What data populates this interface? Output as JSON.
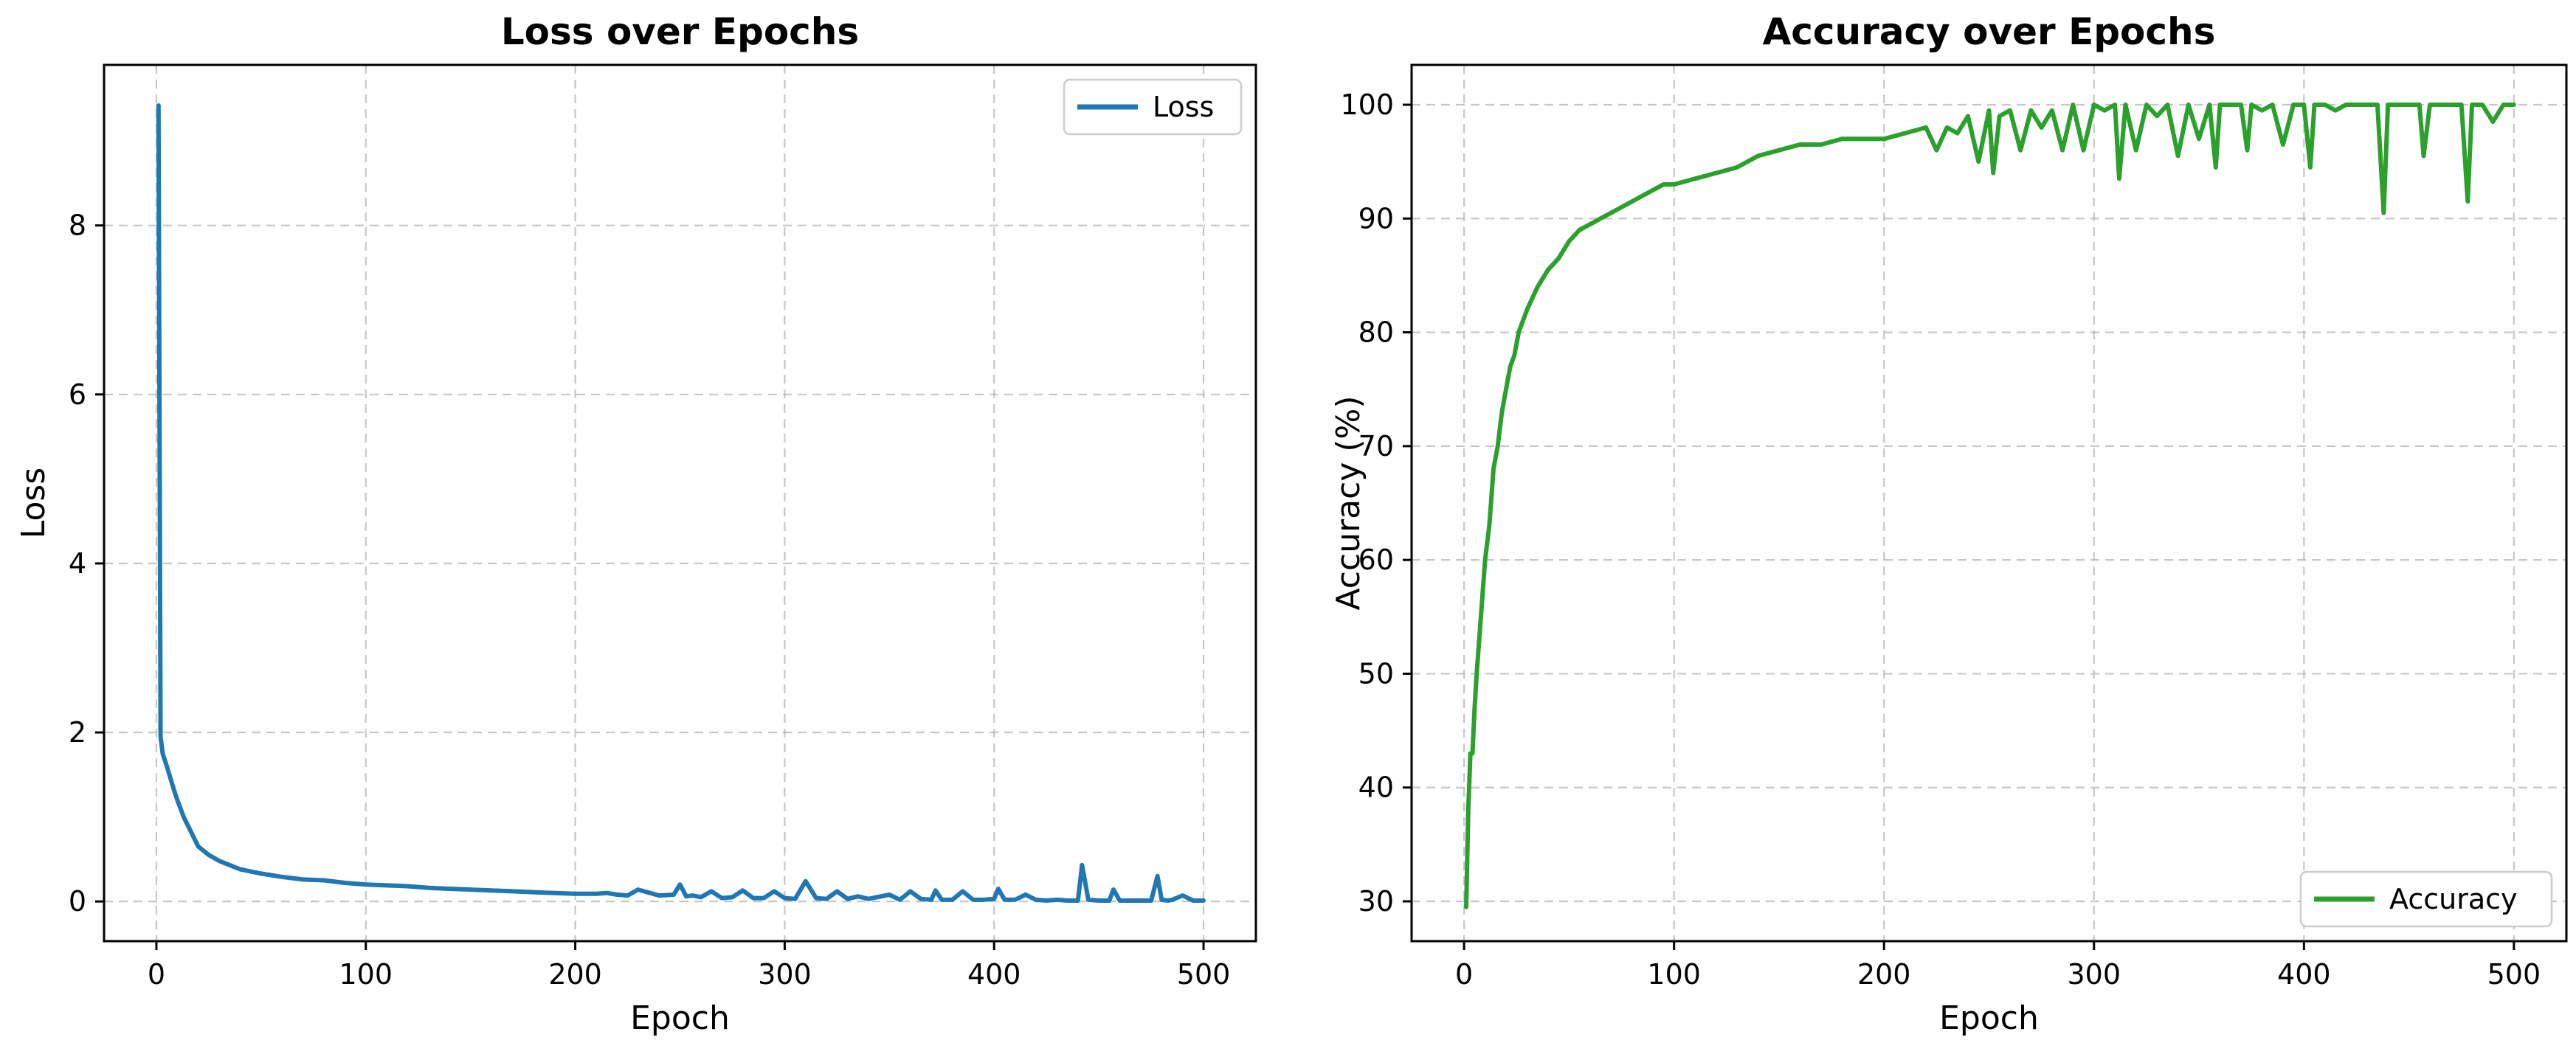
{
  "chart_data": [
    {
      "type": "line",
      "title": "Loss over Epochs",
      "xlabel": "Epoch",
      "ylabel": "Loss",
      "xlim": [
        -25,
        525
      ],
      "ylim": [
        -0.47,
        9.9
      ],
      "xticks": [
        0,
        100,
        200,
        300,
        400,
        500
      ],
      "xtick_labels": [
        "0",
        "100",
        "200",
        "300",
        "400",
        "500"
      ],
      "yticks": [
        0,
        2,
        4,
        6,
        8
      ],
      "ytick_labels": [
        "0",
        "2",
        "4",
        "6",
        "8"
      ],
      "grid": true,
      "legend_position": "top-right",
      "series": [
        {
          "name": "Loss",
          "color": "#1f77b4",
          "x": [
            1,
            2,
            3,
            5,
            8,
            10,
            13,
            16,
            20,
            25,
            30,
            40,
            50,
            60,
            70,
            80,
            90,
            100,
            110,
            120,
            130,
            140,
            150,
            160,
            170,
            180,
            190,
            200,
            210,
            215,
            220,
            225,
            230,
            240,
            247,
            250,
            253,
            256,
            260,
            265,
            270,
            275,
            280,
            285,
            290,
            295,
            300,
            305,
            310,
            315,
            320,
            325,
            330,
            335,
            340,
            350,
            355,
            360,
            365,
            370,
            372,
            375,
            380,
            385,
            390,
            395,
            400,
            402,
            405,
            410,
            415,
            420,
            425,
            430,
            435,
            440,
            442,
            445,
            450,
            455,
            457,
            460,
            465,
            470,
            475,
            478,
            480,
            483,
            485,
            490,
            495,
            500
          ],
          "y": [
            9.42,
            1.95,
            1.75,
            1.6,
            1.35,
            1.2,
            1.0,
            0.85,
            0.65,
            0.55,
            0.48,
            0.38,
            0.33,
            0.29,
            0.26,
            0.25,
            0.22,
            0.2,
            0.19,
            0.18,
            0.16,
            0.15,
            0.14,
            0.13,
            0.12,
            0.11,
            0.1,
            0.09,
            0.09,
            0.1,
            0.08,
            0.07,
            0.14,
            0.07,
            0.08,
            0.2,
            0.06,
            0.07,
            0.05,
            0.12,
            0.04,
            0.05,
            0.13,
            0.04,
            0.04,
            0.12,
            0.04,
            0.03,
            0.24,
            0.04,
            0.03,
            0.12,
            0.03,
            0.06,
            0.03,
            0.08,
            0.02,
            0.12,
            0.03,
            0.02,
            0.13,
            0.02,
            0.02,
            0.12,
            0.02,
            0.02,
            0.03,
            0.15,
            0.02,
            0.02,
            0.08,
            0.02,
            0.01,
            0.02,
            0.01,
            0.01,
            0.43,
            0.02,
            0.01,
            0.01,
            0.14,
            0.01,
            0.01,
            0.01,
            0.01,
            0.3,
            0.02,
            0.01,
            0.02,
            0.07,
            0.01,
            0.01
          ]
        }
      ]
    },
    {
      "type": "line",
      "title": "Accuracy over Epochs",
      "xlabel": "Epoch",
      "ylabel": "Accuracy (%)",
      "xlim": [
        -25,
        525
      ],
      "ylim": [
        26.5,
        103.5
      ],
      "xticks": [
        0,
        100,
        200,
        300,
        400,
        500
      ],
      "xtick_labels": [
        "0",
        "100",
        "200",
        "300",
        "400",
        "500"
      ],
      "yticks": [
        30,
        40,
        50,
        60,
        70,
        80,
        90,
        100
      ],
      "ytick_labels": [
        "30",
        "40",
        "50",
        "60",
        "70",
        "80",
        "90",
        "100"
      ],
      "grid": true,
      "legend_position": "bottom-right",
      "series": [
        {
          "name": "Accuracy",
          "color": "#2ca02c",
          "x": [
            1,
            2,
            3,
            4,
            5,
            6,
            8,
            10,
            12,
            14,
            16,
            18,
            20,
            22,
            24,
            26,
            28,
            30,
            35,
            40,
            45,
            50,
            55,
            60,
            65,
            70,
            75,
            80,
            85,
            90,
            95,
            100,
            110,
            120,
            130,
            140,
            150,
            160,
            170,
            180,
            190,
            200,
            210,
            220,
            225,
            230,
            235,
            240,
            245,
            250,
            252,
            255,
            260,
            265,
            270,
            275,
            280,
            285,
            290,
            295,
            300,
            305,
            310,
            312,
            315,
            320,
            325,
            330,
            335,
            340,
            345,
            350,
            355,
            358,
            360,
            365,
            370,
            373,
            375,
            380,
            385,
            390,
            395,
            400,
            403,
            405,
            410,
            415,
            420,
            425,
            430,
            435,
            438,
            440,
            445,
            450,
            455,
            457,
            460,
            465,
            470,
            475,
            478,
            480,
            485,
            490,
            495,
            500
          ],
          "y": [
            29.5,
            38,
            43,
            43,
            47,
            50,
            55,
            60,
            63,
            68,
            70,
            73,
            75,
            77,
            78,
            80,
            81,
            82,
            84,
            85.5,
            86.5,
            88,
            89,
            89.5,
            90,
            90.5,
            91,
            91.5,
            92,
            92.5,
            93,
            93,
            93.5,
            94,
            94.5,
            95.5,
            96,
            96.5,
            96.5,
            97,
            97,
            97,
            97.5,
            98,
            96,
            98,
            97.5,
            99,
            95,
            99.5,
            94,
            99,
            99.5,
            96,
            99.5,
            98,
            99.5,
            96,
            100,
            96,
            100,
            99.5,
            100,
            93.5,
            100,
            96,
            100,
            99,
            100,
            95.5,
            100,
            97,
            100,
            94.5,
            100,
            100,
            100,
            96,
            100,
            99.5,
            100,
            96.5,
            100,
            100,
            94.5,
            100,
            100,
            99.5,
            100,
            100,
            100,
            100,
            90.5,
            100,
            100,
            100,
            100,
            95.5,
            100,
            100,
            100,
            100,
            91.5,
            100,
            100,
            98.5,
            100,
            100
          ]
        }
      ]
    }
  ]
}
